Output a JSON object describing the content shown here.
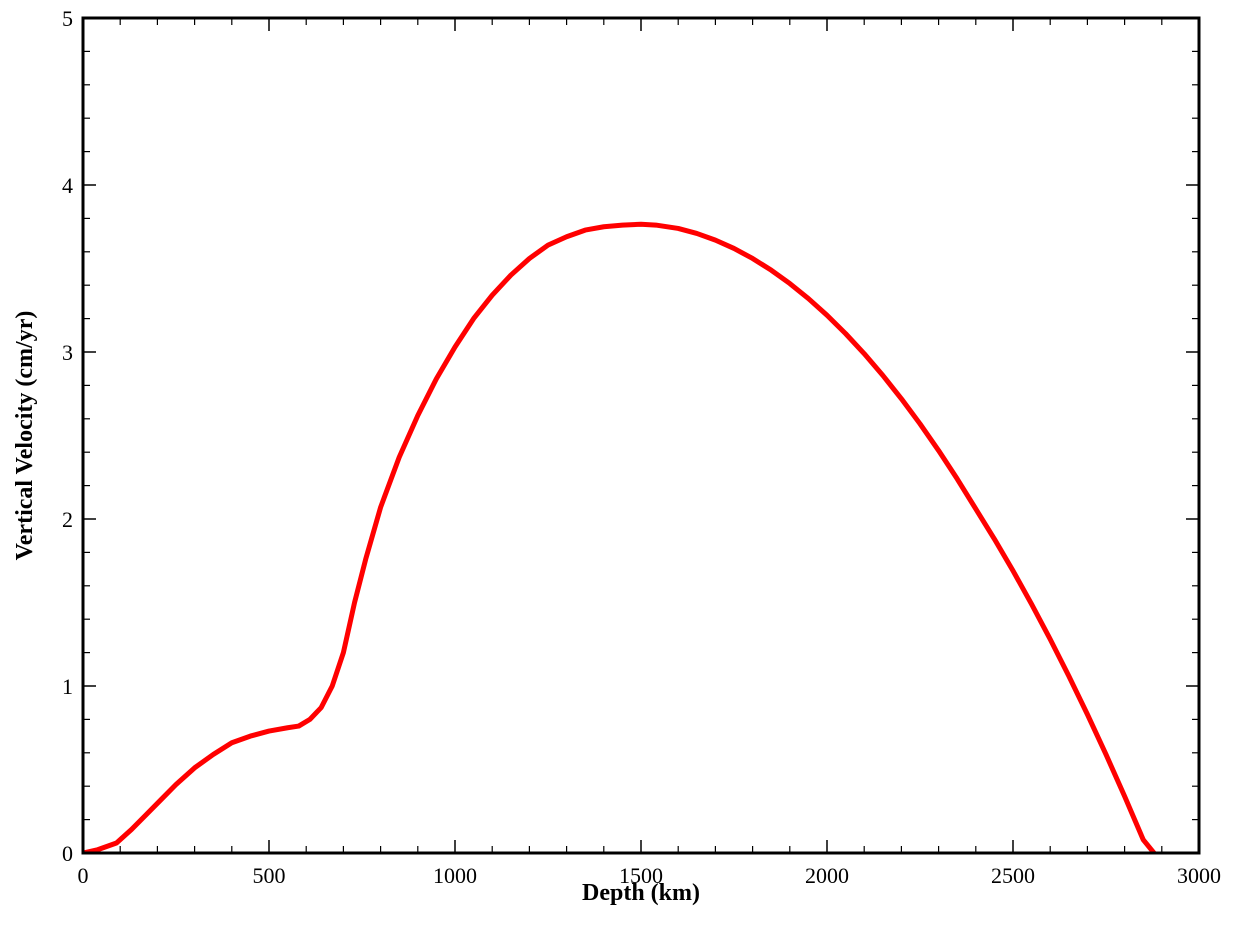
{
  "chart_data": {
    "type": "line",
    "title": "",
    "xlabel": "Depth (km)",
    "ylabel": "Vertical Velocity (cm/yr)",
    "xlim": [
      0,
      3000
    ],
    "ylim": [
      0,
      5
    ],
    "x_ticks": [
      0,
      500,
      1000,
      1500,
      2000,
      2500,
      3000
    ],
    "y_ticks": [
      0,
      1,
      2,
      3,
      4,
      5
    ],
    "x_tick_labels": [
      "0",
      "500",
      "1000",
      "1500",
      "2000",
      "2500",
      "3000"
    ],
    "y_tick_labels": [
      "0",
      "1",
      "2",
      "3",
      "4",
      "5"
    ],
    "x_minor_step": 100,
    "y_minor_step": 0.2,
    "grid": false,
    "legend": "none",
    "series": [
      {
        "color": "#ff0000",
        "x": [
          0,
          40,
          90,
          130,
          170,
          210,
          250,
          300,
          350,
          400,
          450,
          500,
          550,
          580,
          610,
          640,
          670,
          700,
          730,
          760,
          800,
          850,
          900,
          950,
          1000,
          1050,
          1100,
          1150,
          1200,
          1250,
          1300,
          1350,
          1400,
          1450,
          1500,
          1540,
          1600,
          1650,
          1700,
          1750,
          1800,
          1850,
          1900,
          1950,
          2000,
          2050,
          2100,
          2150,
          2200,
          2250,
          2300,
          2350,
          2400,
          2450,
          2500,
          2550,
          2600,
          2650,
          2700,
          2750,
          2800,
          2850,
          2890
        ],
        "y": [
          0,
          0.02,
          0.06,
          0.14,
          0.23,
          0.32,
          0.41,
          0.51,
          0.59,
          0.66,
          0.7,
          0.73,
          0.75,
          0.76,
          0.8,
          0.87,
          1.0,
          1.2,
          1.5,
          1.76,
          2.07,
          2.37,
          2.62,
          2.84,
          3.03,
          3.2,
          3.34,
          3.46,
          3.56,
          3.64,
          3.69,
          3.73,
          3.75,
          3.76,
          3.765,
          3.76,
          3.74,
          3.71,
          3.67,
          3.62,
          3.56,
          3.49,
          3.41,
          3.32,
          3.22,
          3.11,
          2.99,
          2.86,
          2.72,
          2.57,
          2.41,
          2.24,
          2.06,
          1.88,
          1.69,
          1.49,
          1.28,
          1.06,
          0.83,
          0.59,
          0.34,
          0.08,
          -0.03
        ]
      }
    ]
  }
}
